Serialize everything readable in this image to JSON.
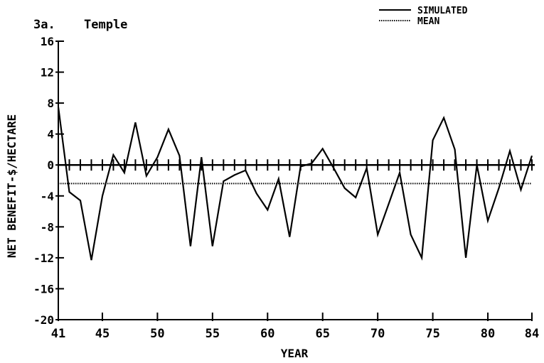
{
  "chart_data": {
    "type": "line",
    "panel_label": "3a.",
    "title": "Temple",
    "xlabel": "YEAR",
    "ylabel": "NET BENEFIT-$/HECTARE",
    "xlim": [
      41,
      84
    ],
    "ylim": [
      -20,
      16
    ],
    "x_ticks": [
      41,
      45,
      50,
      55,
      60,
      65,
      70,
      75,
      80,
      84
    ],
    "y_ticks": [
      16,
      12,
      8,
      4,
      0,
      -4,
      -8,
      -12,
      -16,
      -20
    ],
    "y_tick_labels": [
      "16",
      "12",
      "8",
      "4",
      "0",
      "-4",
      "-8",
      "-12",
      "-16",
      "-20"
    ],
    "legend_position": "top-right",
    "series": [
      {
        "name": "SIMULATED",
        "style": "solid",
        "x": [
          41,
          42,
          43,
          44,
          45,
          46,
          47,
          48,
          49,
          50,
          51,
          52,
          53,
          54,
          55,
          56,
          57,
          58,
          59,
          60,
          61,
          62,
          63,
          64,
          65,
          66,
          67,
          68,
          69,
          70,
          71,
          72,
          73,
          74,
          75,
          76,
          77,
          78,
          79,
          80,
          81,
          82,
          83,
          84
        ],
        "values": [
          7.5,
          -3.5,
          -4.6,
          -12.3,
          -4,
          1.3,
          -1,
          5.5,
          -1.4,
          1,
          4.6,
          1.2,
          -10.5,
          1,
          -10.5,
          -2.1,
          -1.3,
          -0.7,
          -3.7,
          -5.8,
          -1.8,
          -9.3,
          -0.2,
          0.2,
          2.1,
          -0.4,
          -3,
          -4.2,
          -0.4,
          -9,
          -5,
          -1,
          -9,
          -12,
          3.2,
          6.1,
          2,
          -12,
          0,
          -7.2,
          -3,
          1.8,
          -3.2,
          1.2
        ]
      },
      {
        "name": "MEAN",
        "style": "dotted",
        "x": [
          41,
          84
        ],
        "values": [
          -2.4,
          -2.4
        ]
      }
    ]
  }
}
